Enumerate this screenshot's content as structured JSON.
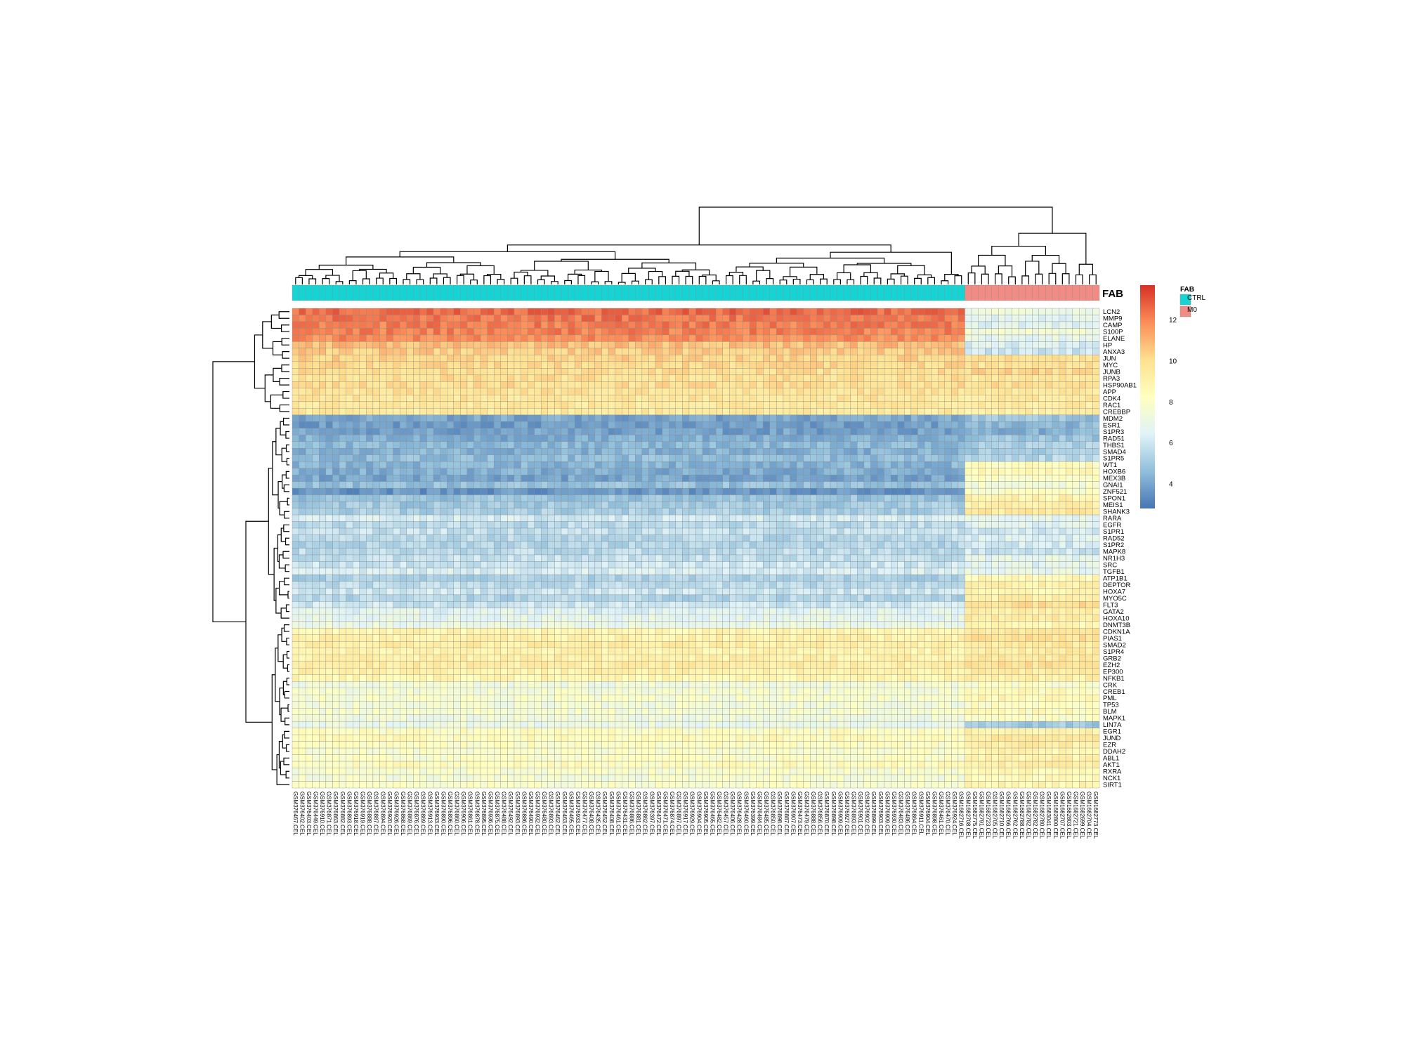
{
  "chart_data": {
    "type": "heatmap",
    "title": "",
    "annotation_label": "FAB",
    "legend": {
      "title": "FAB",
      "groups": [
        {
          "name": "CTRL",
          "color": "#17d4d4"
        },
        {
          "name": "M0",
          "color": "#f08c84"
        }
      ],
      "placement": "right"
    },
    "colorbar": {
      "ticks": [
        12,
        10,
        8,
        6,
        4
      ],
      "range": [
        2.8,
        13.7
      ],
      "colors": [
        "#4575b4",
        "#91bfdb",
        "#e0f3f8",
        "#ffffbf",
        "#fee090",
        "#fc8d59",
        "#d73027"
      ]
    },
    "rows": [
      "LCN2",
      "MMP9",
      "CAMP",
      "S100P",
      "ELANE",
      "HP",
      "ANXA3",
      "JUN",
      "MYC",
      "JUNB",
      "RPA3",
      "HSP90AB1",
      "APP",
      "CDK4",
      "RAC1",
      "CREBBP",
      "MDM2",
      "ESR1",
      "S1PR3",
      "RAD51",
      "THBS1",
      "SMAD4",
      "S1PR5",
      "WT1",
      "HOXB6",
      "MEX3B",
      "GNAI1",
      "ZNF521",
      "SPON1",
      "MEIS1",
      "SHANK3",
      "RARA",
      "EGFR",
      "S1PR1",
      "RAD52",
      "S1PR2",
      "MAPK8",
      "NR1H3",
      "SRC",
      "TGFB1",
      "ATP1B1",
      "DEPTOR",
      "HOXA7",
      "MYO5C",
      "FLT3",
      "GATA2",
      "HOXA10",
      "DNMT3B",
      "CDKN1A",
      "PIAS1",
      "SMAD2",
      "S1PR4",
      "GRB2",
      "EZH2",
      "EP300",
      "NFKB1",
      "CRK",
      "CREB1",
      "PML",
      "TP53",
      "BLM",
      "MAPK1",
      "LIN7A",
      "EGR1",
      "JUND",
      "EZR",
      "DDAH2",
      "ABL1",
      "AKT1",
      "RXRA",
      "NCK1",
      "SIRT1"
    ],
    "row_means_ctrl": [
      12.6,
      12.4,
      12.2,
      12.1,
      11.9,
      10.8,
      10.5,
      10.3,
      10.1,
      10.0,
      9.9,
      10.0,
      9.8,
      9.7,
      9.6,
      9.5,
      4.0,
      3.8,
      3.9,
      4.2,
      4.5,
      4.3,
      4.6,
      4.4,
      4.2,
      4.0,
      4.7,
      3.6,
      4.8,
      5.0,
      5.2,
      6.2,
      5.6,
      5.8,
      5.5,
      5.4,
      5.6,
      5.8,
      6.0,
      6.3,
      5.2,
      5.6,
      6.0,
      5.4,
      6.0,
      6.6,
      6.8,
      7.0,
      8.8,
      9.0,
      9.2,
      8.9,
      9.1,
      9.3,
      9.0,
      8.7,
      7.4,
      7.6,
      7.8,
      7.5,
      7.7,
      7.3,
      7.0,
      8.2,
      8.4,
      8.1,
      7.9,
      8.0,
      8.3,
      7.8,
      7.6,
      7.9
    ],
    "row_means_m0": [
      7.0,
      6.6,
      6.5,
      7.5,
      6.8,
      6.4,
      6.0,
      9.8,
      9.9,
      10.2,
      9.7,
      10.0,
      9.6,
      9.5,
      9.4,
      9.2,
      4.8,
      4.5,
      4.3,
      4.9,
      5.2,
      5.0,
      5.4,
      8.4,
      8.6,
      8.2,
      7.6,
      8.0,
      9.0,
      9.2,
      9.5,
      6.8,
      6.6,
      6.2,
      6.4,
      6.2,
      6.0,
      6.8,
      6.6,
      6.9,
      8.6,
      9.0,
      8.8,
      9.2,
      10.0,
      9.2,
      9.4,
      8.6,
      9.6,
      9.8,
      9.5,
      9.4,
      9.6,
      9.8,
      9.4,
      9.1,
      8.0,
      8.4,
      8.6,
      8.2,
      8.4,
      8.0,
      5.0,
      9.0,
      9.4,
      9.2,
      8.8,
      9.0,
      9.2,
      8.6,
      8.4,
      8.8
    ],
    "columns": [
      "GSM376467.CEL",
      "GSM376402.CEL",
      "GSM376403.CEL",
      "GSM376449.CEL",
      "GSM376910.CEL",
      "GSM376871.CEL",
      "GSM376863.CEL",
      "GSM376882.CEL",
      "GSM376893.CEL",
      "GSM376918.CEL",
      "GSM376919.CEL",
      "GSM376888.CEL",
      "GSM376887.CEL",
      "GSM376894.CEL",
      "GSM376920.CEL",
      "GSM376926.CEL",
      "GSM376868.CEL",
      "GSM376869.CEL",
      "GSM376876.CEL",
      "GSM376869.CEL",
      "GSM376913.CEL",
      "GSM376933.CEL",
      "GSM376890.CEL",
      "GSM376896.CEL",
      "GSM376860.CEL",
      "GSM376906.CEL",
      "GSM376861.CEL",
      "GSM376878.CEL",
      "GSM376895.CEL",
      "GSM376936.CEL",
      "GSM376875.CEL",
      "GSM376488.CEL",
      "GSM376492.CEL",
      "GSM376893.CEL",
      "GSM376886.CEL",
      "GSM376490.CEL",
      "GSM376932.CEL",
      "GSM376480.CEL",
      "GSM376893.CEL",
      "GSM376462.CEL",
      "GSM376463.CEL",
      "GSM376465.CEL",
      "GSM376933.CEL",
      "GSM376477.CEL",
      "GSM376408.CEL",
      "GSM376435.CEL",
      "GSM376452.CEL",
      "GSM376408.CEL",
      "GSM376461.CEL",
      "GSM376431.CEL",
      "GSM376886.CEL",
      "GSM376881.CEL",
      "GSM376862.CEL",
      "GSM376397.CEL",
      "GSM376472.CEL",
      "GSM376471.CEL",
      "GSM376874.CEL",
      "GSM376897.CEL",
      "GSM376917.CEL",
      "GSM376929.CEL",
      "GSM376904.CEL",
      "GSM376905.CEL",
      "GSM376465.CEL",
      "GSM376482.CEL",
      "GSM376457.CEL",
      "GSM376406.CEL",
      "GSM376428.CEL",
      "GSM376460.CEL",
      "GSM376399.CEL",
      "GSM376484.CEL",
      "GSM376485.CEL",
      "GSM376850.CEL",
      "GSM376898.CEL",
      "GSM376887.CEL",
      "GSM376907.CEL",
      "GSM376473.CEL",
      "GSM376479.CEL",
      "GSM376888.CEL",
      "GSM376856.CEL",
      "GSM376870.CEL",
      "GSM376898.CEL",
      "GSM376909.CEL",
      "GSM376927.CEL",
      "GSM376893.CEL",
      "GSM376901.CEL",
      "GSM376902.CEL",
      "GSM376899.CEL",
      "GSM376903.CEL",
      "GSM376909.CEL",
      "GSM376930.CEL",
      "GSM376483.CEL",
      "GSM376486.CEL",
      "GSM376864.CEL",
      "GSM376911.CEL",
      "GSM376904.CEL",
      "GSM376898.CEL",
      "GSM376461.CEL",
      "GSM376470.CEL",
      "GSM376924.CEL",
      "GSM1682716.CEL",
      "GSM1682708.CEL",
      "GSM1682775.CEL",
      "GSM1682791.CEL",
      "GSM1682723.CEL",
      "GSM1682705.CEL",
      "GSM1682710.CEL",
      "GSM1682766.CEL",
      "GSM1682762.CEL",
      "GSM1682788.CEL",
      "GSM1682782.CEL",
      "GSM1682782.CEL",
      "GSM1682780.CEL",
      "GSM1683041.CEL",
      "GSM1682800.CEL",
      "GSM1682707.CEL",
      "GSM1682803.CEL",
      "GSM1682721.CEL",
      "GSM1682699.CEL",
      "GSM1682704.CEL",
      "GSM1682773.CEL"
    ],
    "groups": [
      {
        "name": "CTRL",
        "count": 100
      },
      {
        "name": "M0",
        "count": 20
      }
    ],
    "xlabel": "",
    "ylabel": ""
  }
}
